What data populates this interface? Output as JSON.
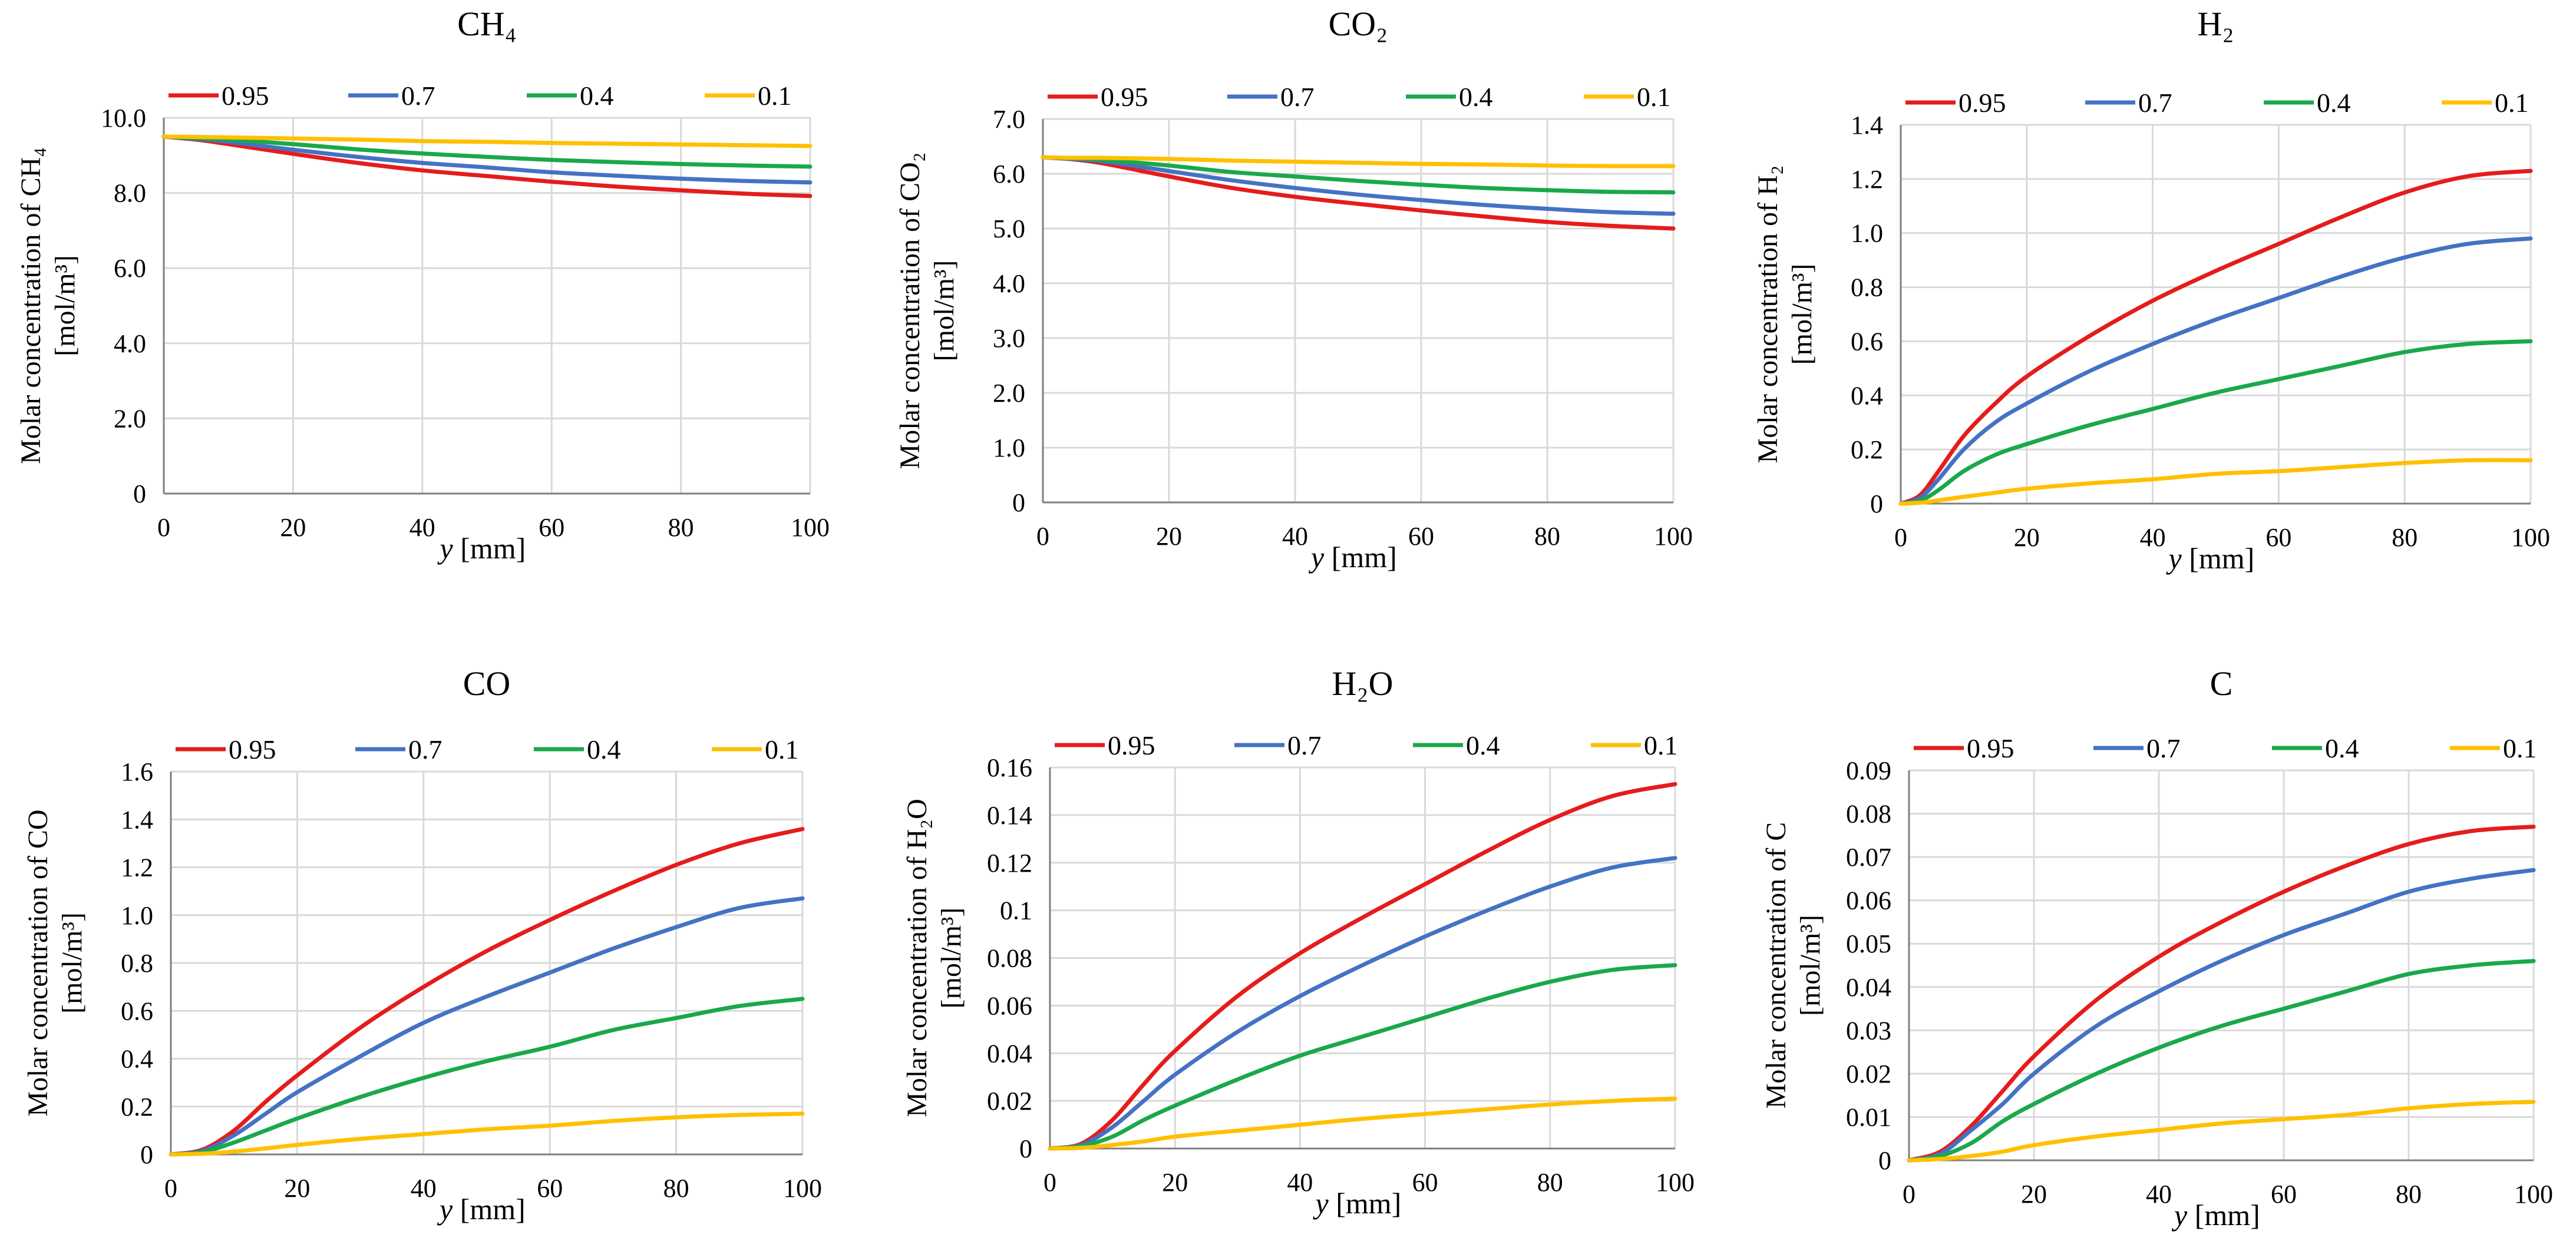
{
  "figure": {
    "x_axis_label": "y [mm]",
    "x_axis_var": "y",
    "x_axis_unit": "[mm]"
  },
  "legend_labels": [
    "0.95",
    "0.7",
    "0.4",
    "0.1"
  ],
  "series_colors": [
    "#e51c1c",
    "#4472c4",
    "#1aa84b",
    "#ffc000"
  ],
  "chart_data": [
    {
      "id": "ch4",
      "type": "line",
      "title": "CH₄",
      "ylabel_line1": "Molar concentration of CH₄",
      "ylabel_line2": "[mol/m³]",
      "xlabel": "y [mm]",
      "xlim": [
        0,
        100
      ],
      "ylim": [
        0,
        10
      ],
      "xticks": [
        0,
        20,
        40,
        60,
        80,
        100
      ],
      "xtick_labels": [
        "0",
        "20",
        "40",
        "60",
        "80",
        "100"
      ],
      "yticks": [
        0,
        2,
        4,
        6,
        8,
        10
      ],
      "ytick_labels": [
        "0",
        "2.0",
        "4.0",
        "6.0",
        "8.0",
        "10.0"
      ],
      "grid": true,
      "x": [
        0,
        5,
        10,
        20,
        30,
        40,
        50,
        60,
        70,
        80,
        90,
        100
      ],
      "series": [
        {
          "name": "0.95",
          "values": [
            9.5,
            9.42,
            9.3,
            9.04,
            8.8,
            8.6,
            8.45,
            8.3,
            8.17,
            8.07,
            7.98,
            7.92
          ]
        },
        {
          "name": "0.7",
          "values": [
            9.5,
            9.44,
            9.36,
            9.15,
            8.96,
            8.8,
            8.68,
            8.55,
            8.46,
            8.38,
            8.32,
            8.28
          ]
        },
        {
          "name": "0.4",
          "values": [
            9.5,
            9.46,
            9.42,
            9.3,
            9.16,
            9.05,
            8.96,
            8.88,
            8.82,
            8.77,
            8.73,
            8.7
          ]
        },
        {
          "name": "0.1",
          "values": [
            9.5,
            9.49,
            9.48,
            9.45,
            9.42,
            9.38,
            9.36,
            9.33,
            9.31,
            9.29,
            9.27,
            9.25
          ]
        }
      ]
    },
    {
      "id": "co2",
      "type": "line",
      "title": "CO₂",
      "ylabel_line1": "Molar concentration of CO₂",
      "ylabel_line2": "[mol/m³]",
      "xlabel": "y [mm]",
      "xlim": [
        0,
        100
      ],
      "ylim": [
        0,
        7
      ],
      "xticks": [
        0,
        20,
        40,
        60,
        80,
        100
      ],
      "xtick_labels": [
        "0",
        "20",
        "40",
        "60",
        "80",
        "100"
      ],
      "yticks": [
        0,
        1,
        2,
        3,
        4,
        5,
        6,
        7
      ],
      "ytick_labels": [
        "0",
        "1.0",
        "2.0",
        "3.0",
        "4.0",
        "5.0",
        "6.0",
        "7.0"
      ],
      "grid": true,
      "x": [
        0,
        5,
        10,
        20,
        30,
        40,
        50,
        60,
        70,
        80,
        90,
        100
      ],
      "series": [
        {
          "name": "0.95",
          "values": [
            6.3,
            6.26,
            6.18,
            5.95,
            5.74,
            5.58,
            5.45,
            5.33,
            5.22,
            5.12,
            5.05,
            5.0
          ]
        },
        {
          "name": "0.7",
          "values": [
            6.3,
            6.27,
            6.22,
            6.05,
            5.88,
            5.74,
            5.62,
            5.52,
            5.43,
            5.36,
            5.3,
            5.27
          ]
        },
        {
          "name": "0.4",
          "values": [
            6.3,
            6.28,
            6.25,
            6.15,
            6.03,
            5.95,
            5.87,
            5.8,
            5.74,
            5.7,
            5.67,
            5.66
          ]
        },
        {
          "name": "0.1",
          "values": [
            6.3,
            6.29,
            6.29,
            6.27,
            6.24,
            6.22,
            6.2,
            6.18,
            6.17,
            6.15,
            6.14,
            6.14
          ]
        }
      ]
    },
    {
      "id": "h2",
      "type": "line",
      "title": "H₂",
      "ylabel_line1": "Molar concentration of H₂",
      "ylabel_line2": "[mol/m³]",
      "xlabel": "y [mm]",
      "xlim": [
        0,
        100
      ],
      "ylim": [
        0,
        1.4
      ],
      "xticks": [
        0,
        20,
        40,
        60,
        80,
        100
      ],
      "xtick_labels": [
        "0",
        "20",
        "40",
        "60",
        "80",
        "100"
      ],
      "yticks": [
        0,
        0.2,
        0.4,
        0.6,
        0.8,
        1.0,
        1.2,
        1.4
      ],
      "ytick_labels": [
        "0",
        "0.2",
        "0.4",
        "0.6",
        "0.8",
        "1.0",
        "1.2",
        "1.4"
      ],
      "grid": true,
      "x": [
        0,
        3,
        6,
        10,
        15,
        20,
        30,
        40,
        50,
        60,
        70,
        80,
        90,
        100
      ],
      "series": [
        {
          "name": "0.95",
          "values": [
            0,
            0.03,
            0.12,
            0.25,
            0.37,
            0.47,
            0.62,
            0.75,
            0.86,
            0.96,
            1.06,
            1.15,
            1.21,
            1.23
          ]
        },
        {
          "name": "0.7",
          "values": [
            0,
            0.02,
            0.09,
            0.2,
            0.3,
            0.37,
            0.49,
            0.59,
            0.68,
            0.76,
            0.84,
            0.91,
            0.96,
            0.98
          ]
        },
        {
          "name": "0.4",
          "values": [
            0,
            0.01,
            0.05,
            0.12,
            0.18,
            0.22,
            0.29,
            0.35,
            0.41,
            0.46,
            0.51,
            0.56,
            0.59,
            0.6
          ]
        },
        {
          "name": "0.1",
          "values": [
            0,
            0.003,
            0.012,
            0.025,
            0.04,
            0.055,
            0.075,
            0.09,
            0.11,
            0.12,
            0.135,
            0.15,
            0.16,
            0.16
          ]
        }
      ]
    },
    {
      "id": "co",
      "type": "line",
      "title": "CO",
      "ylabel_line1": "Molar concentration of CO",
      "ylabel_line2": "[mol/m³]",
      "xlabel": "y [mm]",
      "xlim": [
        0,
        100
      ],
      "ylim": [
        0,
        1.6
      ],
      "xticks": [
        0,
        20,
        40,
        60,
        80,
        100
      ],
      "xtick_labels": [
        "0",
        "20",
        "40",
        "60",
        "80",
        "100"
      ],
      "yticks": [
        0,
        0.2,
        0.4,
        0.6,
        0.8,
        1.0,
        1.2,
        1.4,
        1.6
      ],
      "ytick_labels": [
        "0",
        "0.2",
        "0.4",
        "0.6",
        "0.8",
        "1.0",
        "1.2",
        "1.4",
        "1.6"
      ],
      "grid": true,
      "x": [
        0,
        5,
        10,
        15,
        20,
        30,
        40,
        50,
        60,
        70,
        80,
        90,
        100
      ],
      "series": [
        {
          "name": "0.95",
          "values": [
            0,
            0.02,
            0.1,
            0.22,
            0.33,
            0.53,
            0.7,
            0.85,
            0.98,
            1.1,
            1.21,
            1.3,
            1.36
          ]
        },
        {
          "name": "0.7",
          "values": [
            0,
            0.015,
            0.08,
            0.17,
            0.26,
            0.41,
            0.55,
            0.66,
            0.76,
            0.86,
            0.95,
            1.03,
            1.07
          ]
        },
        {
          "name": "0.4",
          "values": [
            0,
            0.01,
            0.05,
            0.1,
            0.15,
            0.24,
            0.32,
            0.39,
            0.45,
            0.52,
            0.57,
            0.62,
            0.65
          ]
        },
        {
          "name": "0.1",
          "values": [
            0,
            0.003,
            0.012,
            0.025,
            0.04,
            0.065,
            0.085,
            0.105,
            0.12,
            0.14,
            0.155,
            0.165,
            0.17
          ]
        }
      ]
    },
    {
      "id": "h2o",
      "type": "line",
      "title": "H₂O",
      "ylabel_line1": "Molar concentration of H₂O",
      "ylabel_line2": "[mol/m³]",
      "xlabel": "y [mm]",
      "xlim": [
        0,
        100
      ],
      "ylim": [
        0,
        0.16
      ],
      "xticks": [
        0,
        20,
        40,
        60,
        80,
        100
      ],
      "xtick_labels": [
        "0",
        "20",
        "40",
        "60",
        "80",
        "100"
      ],
      "yticks": [
        0,
        0.02,
        0.04,
        0.06,
        0.08,
        0.1,
        0.12,
        0.14,
        0.16
      ],
      "ytick_labels": [
        "0",
        "0.02",
        "0.04",
        "0.06",
        "0.08",
        "0.1",
        "0.12",
        "0.14",
        "0.16"
      ],
      "grid": true,
      "x": [
        0,
        5,
        10,
        15,
        20,
        30,
        40,
        50,
        60,
        70,
        80,
        90,
        100
      ],
      "series": [
        {
          "name": "0.95",
          "values": [
            0,
            0.002,
            0.012,
            0.027,
            0.041,
            0.064,
            0.082,
            0.097,
            0.111,
            0.125,
            0.138,
            0.148,
            0.153
          ]
        },
        {
          "name": "0.7",
          "values": [
            0,
            0.0015,
            0.009,
            0.02,
            0.031,
            0.049,
            0.064,
            0.077,
            0.089,
            0.1,
            0.11,
            0.118,
            0.122
          ]
        },
        {
          "name": "0.4",
          "values": [
            0,
            0.001,
            0.005,
            0.012,
            0.018,
            0.029,
            0.039,
            0.047,
            0.055,
            0.063,
            0.07,
            0.075,
            0.077
          ]
        },
        {
          "name": "0.1",
          "values": [
            0,
            0.0003,
            0.0015,
            0.003,
            0.005,
            0.0075,
            0.01,
            0.0125,
            0.0145,
            0.0165,
            0.0185,
            0.02,
            0.021
          ]
        }
      ]
    },
    {
      "id": "c",
      "type": "line",
      "title": "C",
      "ylabel_line1": "Molar concentration of C",
      "ylabel_line2": "[mol/m³]",
      "xlabel": "y [mm]",
      "xlim": [
        0,
        100
      ],
      "ylim": [
        0,
        0.09
      ],
      "xticks": [
        0,
        20,
        40,
        60,
        80,
        100
      ],
      "xtick_labels": [
        "0",
        "20",
        "40",
        "60",
        "80",
        "100"
      ],
      "yticks": [
        0,
        0.01,
        0.02,
        0.03,
        0.04,
        0.05,
        0.06,
        0.07,
        0.08,
        0.09
      ],
      "ytick_labels": [
        "0",
        "0.01",
        "0.02",
        "0.03",
        "0.04",
        "0.05",
        "0.06",
        "0.07",
        "0.08",
        "0.09"
      ],
      "grid": true,
      "x": [
        0,
        5,
        10,
        15,
        20,
        30,
        40,
        50,
        60,
        70,
        80,
        90,
        100
      ],
      "series": [
        {
          "name": "0.95",
          "values": [
            0,
            0.002,
            0.008,
            0.016,
            0.024,
            0.037,
            0.047,
            0.055,
            0.062,
            0.068,
            0.073,
            0.076,
            0.077
          ]
        },
        {
          "name": "0.7",
          "values": [
            0,
            0.0015,
            0.007,
            0.013,
            0.02,
            0.031,
            0.039,
            0.046,
            0.052,
            0.057,
            0.062,
            0.065,
            0.067
          ]
        },
        {
          "name": "0.4",
          "values": [
            0,
            0.001,
            0.004,
            0.009,
            0.013,
            0.02,
            0.026,
            0.031,
            0.035,
            0.039,
            0.043,
            0.045,
            0.046
          ]
        },
        {
          "name": "0.1",
          "values": [
            0,
            0.0003,
            0.001,
            0.002,
            0.0035,
            0.0055,
            0.007,
            0.0085,
            0.0095,
            0.0105,
            0.012,
            0.013,
            0.0135
          ]
        }
      ]
    }
  ]
}
